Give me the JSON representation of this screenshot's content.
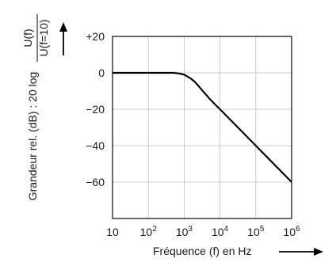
{
  "chart_data": {
    "type": "line",
    "x_scale": "log",
    "x_ticks": [
      {
        "base": "10",
        "exp": ""
      },
      {
        "base": "10",
        "exp": "2"
      },
      {
        "base": "10",
        "exp": "3"
      },
      {
        "base": "10",
        "exp": "4"
      },
      {
        "base": "10",
        "exp": "5"
      },
      {
        "base": "10",
        "exp": "6"
      }
    ],
    "x_tick_values": [
      10,
      100,
      1000,
      10000,
      100000,
      1000000
    ],
    "xlim": [
      10,
      1000000
    ],
    "y_ticks": [
      "+20",
      "0",
      "−20",
      "−40",
      "−60"
    ],
    "y_tick_values": [
      20,
      0,
      -20,
      -40,
      -60
    ],
    "ylim": [
      -80,
      20
    ],
    "grid": true,
    "xlabel": "Fréquence (f) en Hz",
    "ylabel_main": "Grandeur rel. (dB) : 20 log",
    "ylabel_fraction": {
      "numerator": "U(f)",
      "denominator": "U(f=10)"
    },
    "series": [
      {
        "x": [
          10,
          100,
          300,
          500,
          700,
          1000,
          1500,
          2000,
          3000,
          5000,
          7000,
          10000,
          100000,
          1000000
        ],
        "y": [
          0,
          0,
          0,
          0,
          -0.3,
          -1,
          -3,
          -5,
          -9,
          -14,
          -17,
          -20,
          -40,
          -60
        ]
      }
    ],
    "line_color": "#000000"
  }
}
